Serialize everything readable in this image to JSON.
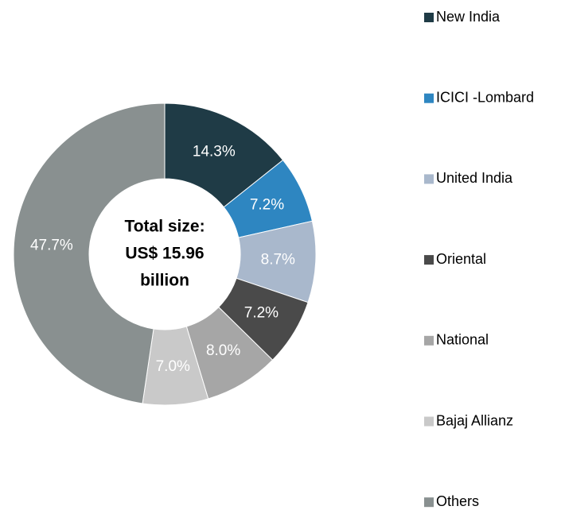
{
  "chart_data": {
    "type": "donut",
    "categories": [
      "New India",
      "ICICI -Lombard",
      "United India",
      "Oriental",
      "National",
      "Bajaj Allianz",
      "Others"
    ],
    "values": [
      14.3,
      7.2,
      8.7,
      7.2,
      8.0,
      7.0,
      47.7
    ],
    "value_labels": [
      "14.3%",
      "7.2%",
      "8.7%",
      "7.2%",
      "8.0%",
      "7.0%",
      "47.7%"
    ],
    "colors": [
      "#1f3b46",
      "#2e86c1",
      "#a9b8cc",
      "#4a4a4a",
      "#a6a6a6",
      "#c9c9c9",
      "#899090"
    ],
    "center_text": [
      "Total size:",
      "US$ 15.96",
      "billion"
    ],
    "legend": "right"
  }
}
